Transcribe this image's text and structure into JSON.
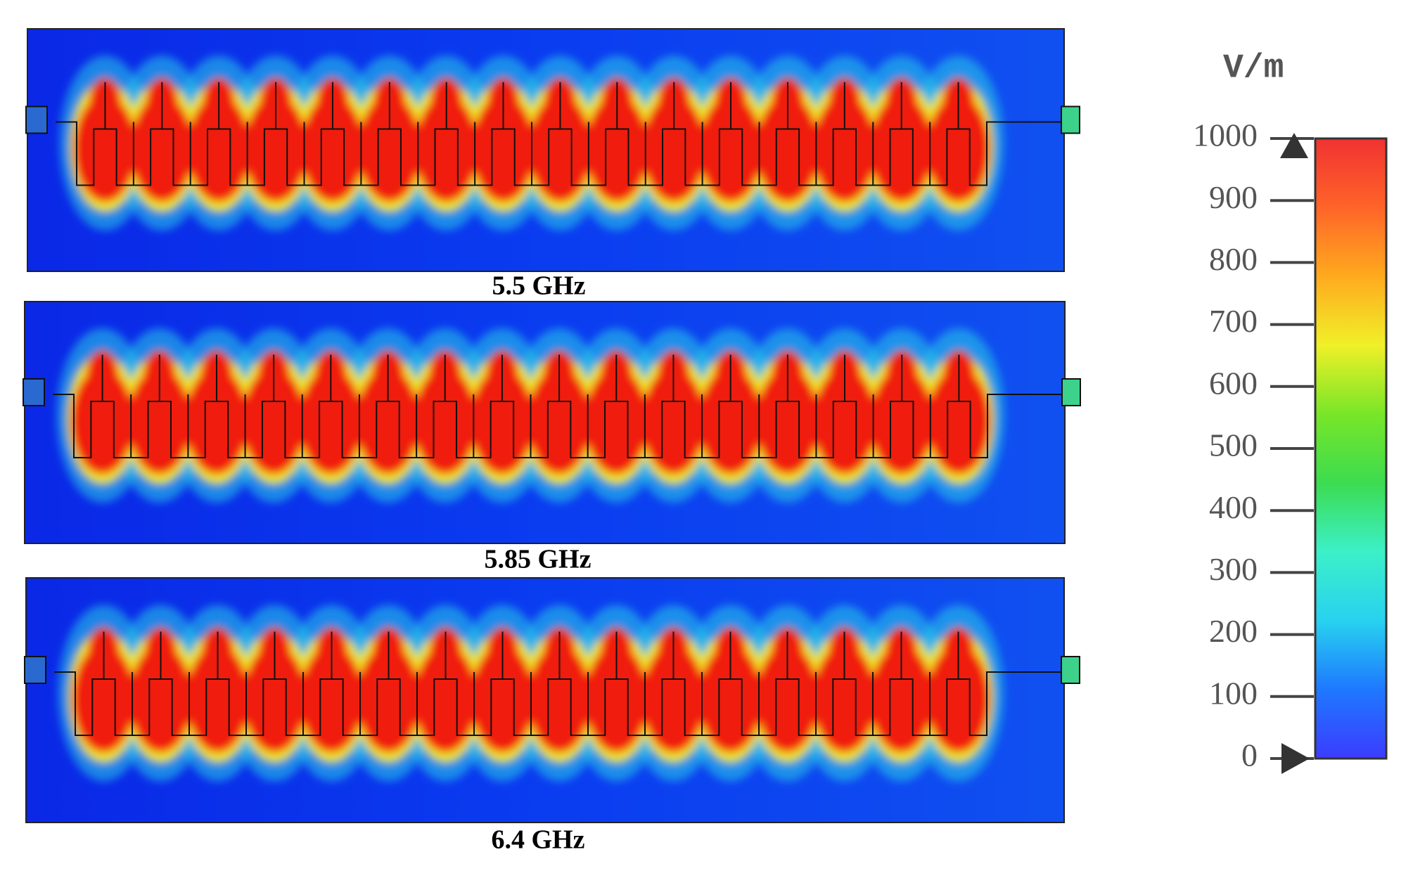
{
  "panels": [
    {
      "label": "5.5 GHz"
    },
    {
      "label": "5.85 GHz"
    },
    {
      "label": "6.4 GHz"
    }
  ],
  "colorbar": {
    "unit": "V/m",
    "lim": [
      0,
      1000
    ],
    "ticks": [
      0,
      100,
      200,
      300,
      400,
      500,
      600,
      700,
      800,
      900,
      1000
    ],
    "colors": [
      "#3c3cff",
      "#1e78ff",
      "#28d2f0",
      "#3cf0c8",
      "#3cdc50",
      "#78e628",
      "#f0f028",
      "#ffaa1e",
      "#ff6428",
      "#f03232"
    ]
  }
}
